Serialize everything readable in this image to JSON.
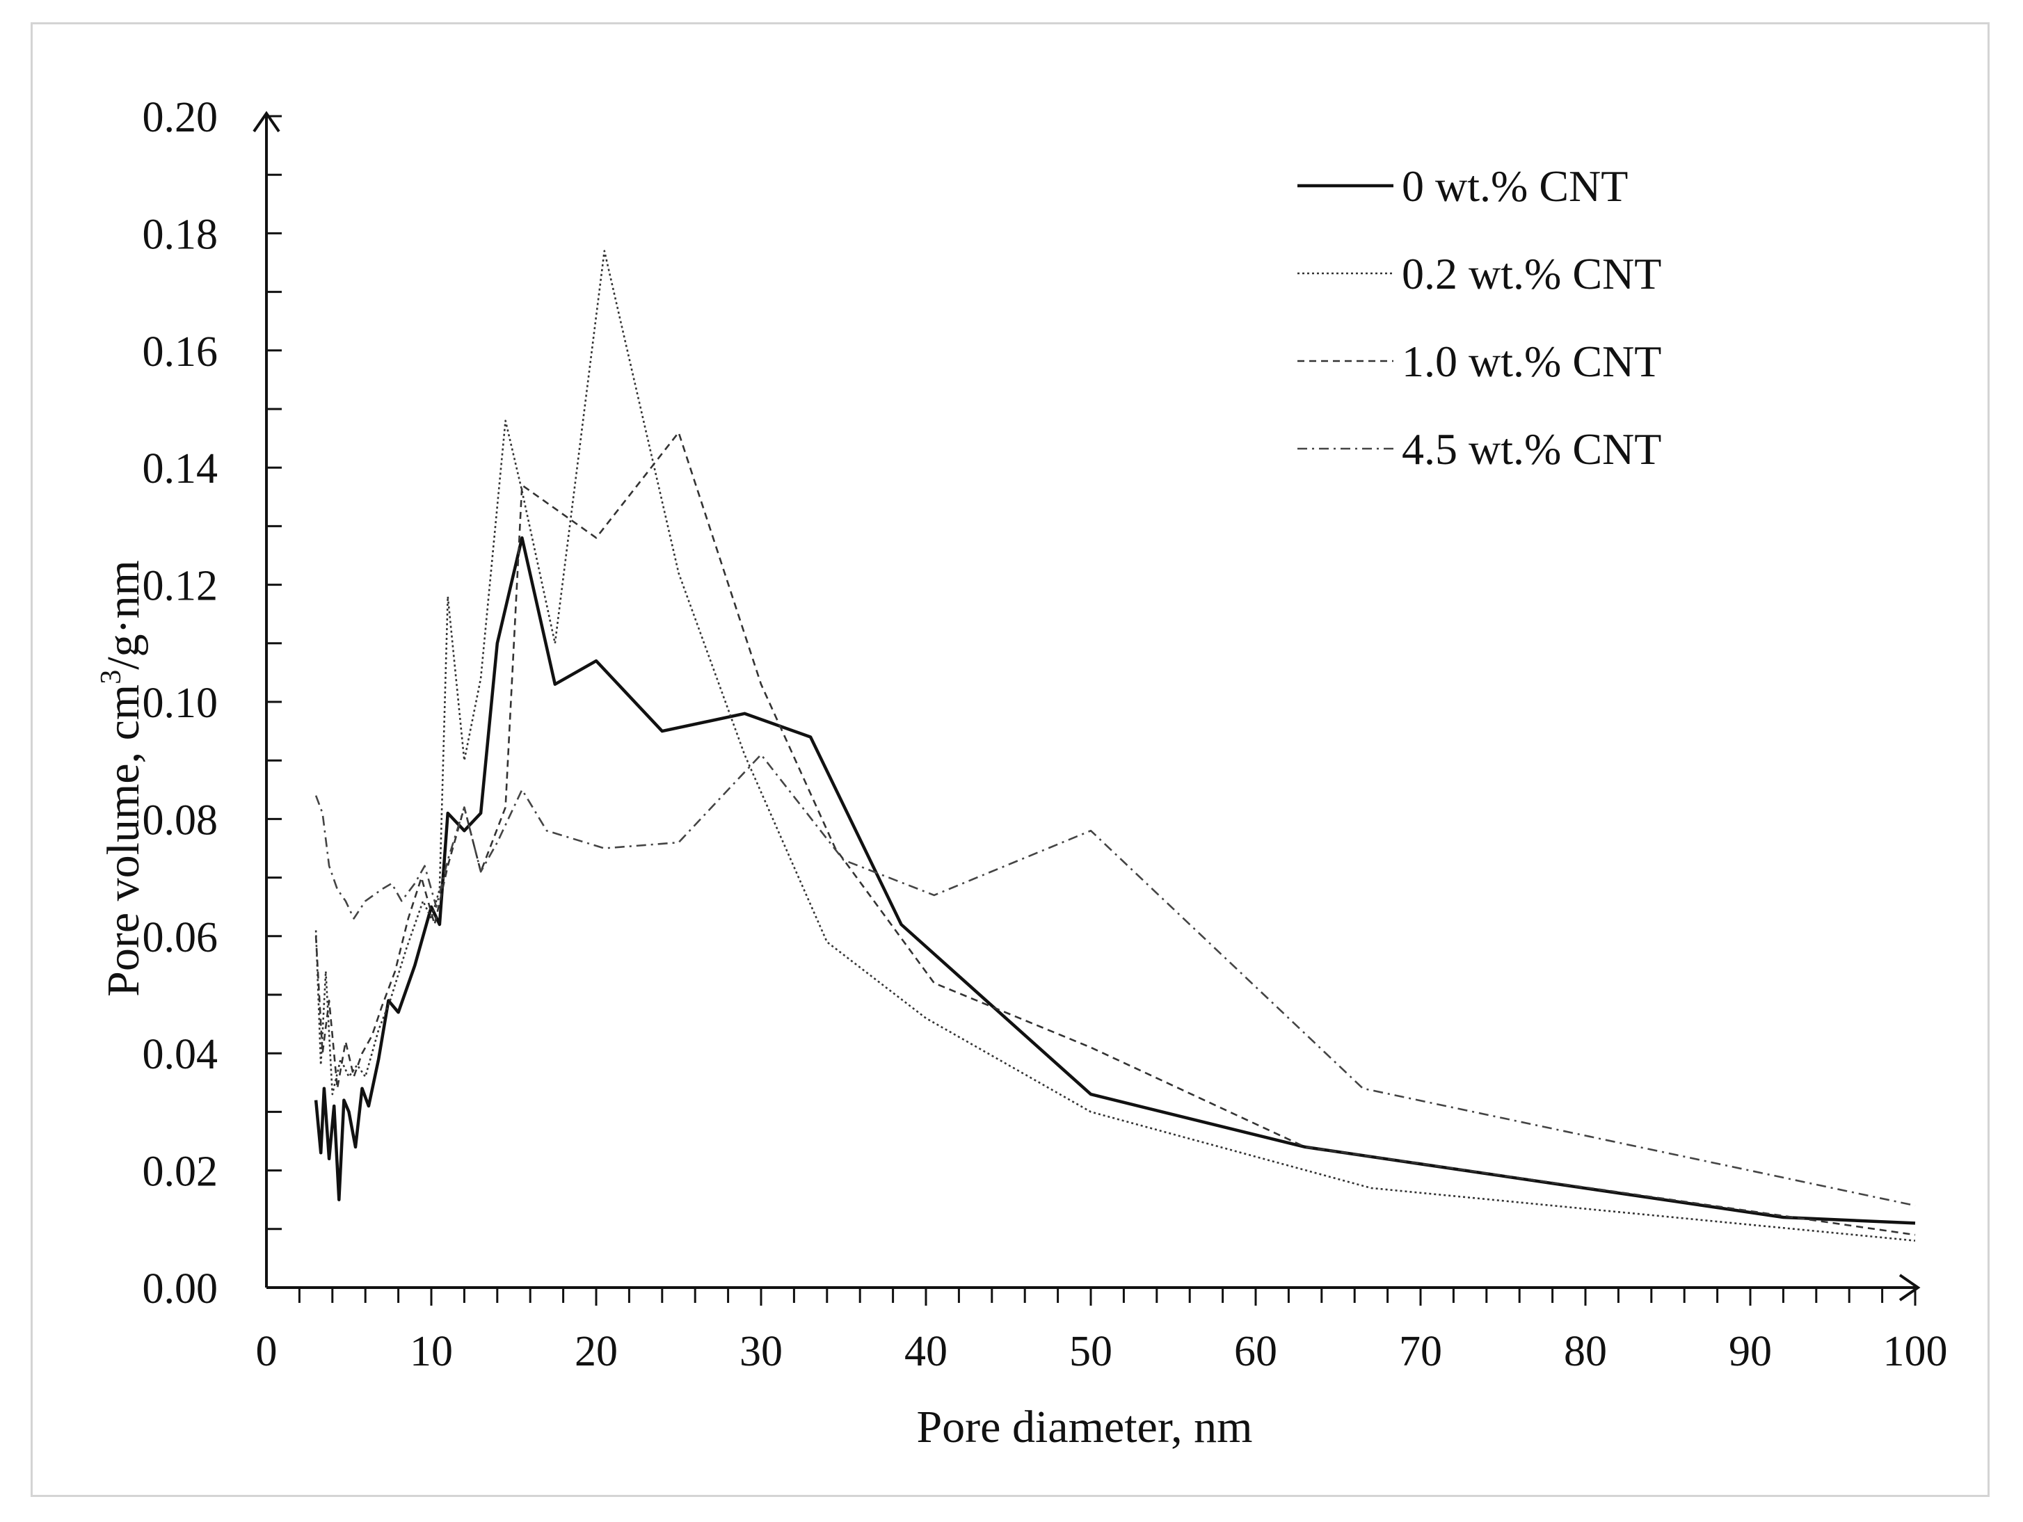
{
  "chart_data": {
    "type": "line",
    "title": "",
    "xlabel": "Pore diameter, nm",
    "ylabel_main": "Pore volume, cm",
    "ylabel_sup": "3",
    "ylabel_tail": "/g·nm",
    "xlim": [
      0,
      100
    ],
    "ylim": [
      0,
      0.2
    ],
    "xticks": [
      0,
      10,
      20,
      30,
      40,
      50,
      60,
      70,
      80,
      90,
      100
    ],
    "xtick_labels": [
      "0",
      "10",
      "20",
      "30",
      "40",
      "50",
      "60",
      "70",
      "80",
      "90",
      "100"
    ],
    "yticks": [
      0,
      0.02,
      0.04,
      0.06,
      0.08,
      0.1,
      0.12,
      0.14,
      0.16,
      0.18,
      0.2
    ],
    "ytick_labels": [
      "0.00",
      "0.02",
      "0.04",
      "0.06",
      "0.08",
      "0.10",
      "0.12",
      "0.14",
      "0.16",
      "0.18",
      "0.20"
    ],
    "grid": false,
    "legend_position": "top-right",
    "series": [
      {
        "name": "0 wt.% CNT",
        "style": "solid",
        "x": [
          3.0,
          3.3,
          3.5,
          3.8,
          4.1,
          4.4,
          4.7,
          5.0,
          5.4,
          5.8,
          6.2,
          6.8,
          7.4,
          8.0,
          9.0,
          10.0,
          10.5,
          11.0,
          12.0,
          13.0,
          14.0,
          15.5,
          17.5,
          20.0,
          24.0,
          29.0,
          33.0,
          38.5,
          50.0,
          63.0,
          92.0,
          100.0
        ],
        "values": [
          0.032,
          0.023,
          0.034,
          0.022,
          0.031,
          0.015,
          0.032,
          0.03,
          0.024,
          0.034,
          0.031,
          0.039,
          0.049,
          0.047,
          0.055,
          0.065,
          0.062,
          0.081,
          0.078,
          0.081,
          0.11,
          0.128,
          0.103,
          0.107,
          0.095,
          0.098,
          0.094,
          0.062,
          0.033,
          0.024,
          0.012,
          0.011
        ]
      },
      {
        "name": "0.2 wt.% CNT",
        "style": "dotted",
        "x": [
          3.0,
          3.3,
          3.6,
          4.0,
          4.5,
          5.0,
          5.5,
          6.0,
          6.8,
          7.5,
          8.5,
          9.5,
          10.0,
          10.5,
          11.0,
          12.0,
          13.0,
          14.5,
          15.5,
          17.5,
          20.5,
          25.0,
          29.0,
          34.0,
          40.0,
          50.0,
          67.0,
          100.0
        ],
        "values": [
          0.061,
          0.038,
          0.054,
          0.033,
          0.039,
          0.036,
          0.038,
          0.036,
          0.044,
          0.049,
          0.058,
          0.066,
          0.063,
          0.068,
          0.118,
          0.09,
          0.104,
          0.148,
          0.136,
          0.11,
          0.177,
          0.122,
          0.091,
          0.059,
          0.046,
          0.03,
          0.017,
          0.008
        ]
      },
      {
        "name": "1.0 wt.% CNT",
        "style": "dashed",
        "x": [
          3.0,
          3.4,
          3.8,
          4.3,
          4.8,
          5.3,
          5.8,
          6.4,
          7.0,
          7.8,
          8.6,
          9.4,
          10.2,
          11.0,
          12.0,
          13.0,
          14.5,
          15.5,
          17.5,
          20.0,
          25.0,
          30.0,
          34.5,
          40.5,
          50.0,
          63.0,
          100.0
        ],
        "values": [
          0.06,
          0.04,
          0.049,
          0.034,
          0.042,
          0.036,
          0.04,
          0.043,
          0.048,
          0.054,
          0.063,
          0.07,
          0.062,
          0.072,
          0.082,
          0.071,
          0.082,
          0.137,
          0.133,
          0.128,
          0.146,
          0.103,
          0.075,
          0.052,
          0.041,
          0.024,
          0.009
        ]
      },
      {
        "name": "4.5 wt.% CNT",
        "style": "dashdot",
        "x": [
          3.0,
          3.4,
          3.8,
          4.3,
          4.8,
          5.3,
          6.0,
          7.0,
          7.6,
          8.2,
          9.0,
          9.6,
          10.3,
          11.0,
          12.0,
          13.0,
          14.0,
          15.5,
          17.0,
          20.5,
          25.0,
          30.0,
          35.0,
          40.5,
          50.0,
          66.5,
          100.0
        ],
        "values": [
          0.084,
          0.081,
          0.072,
          0.068,
          0.066,
          0.063,
          0.066,
          0.068,
          0.069,
          0.066,
          0.069,
          0.072,
          0.065,
          0.073,
          0.082,
          0.071,
          0.076,
          0.085,
          0.078,
          0.075,
          0.076,
          0.091,
          0.073,
          0.067,
          0.078,
          0.034,
          0.014
        ]
      }
    ]
  }
}
